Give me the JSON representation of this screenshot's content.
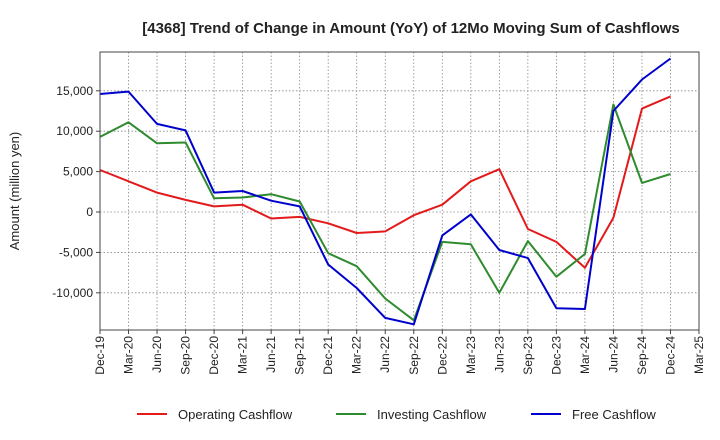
{
  "chart_data": {
    "type": "line",
    "title": "[4368]  Trend of Change in Amount (YoY) of 12Mo Moving Sum of Cashflows",
    "xlabel": "",
    "ylabel": "Amount (million yen)",
    "ylim": [
      -14600,
      19800
    ],
    "y_ticks": [
      -10000,
      -5000,
      0,
      5000,
      10000,
      15000
    ],
    "y_tick_labels": [
      "-10,000",
      "-5,000",
      "0",
      "5,000",
      "10,000",
      "15,000"
    ],
    "categories": [
      "Dec-19",
      "Mar-20",
      "Jun-20",
      "Sep-20",
      "Dec-20",
      "Mar-21",
      "Jun-21",
      "Sep-21",
      "Dec-21",
      "Mar-22",
      "Jun-22",
      "Sep-22",
      "Dec-22",
      "Mar-23",
      "Jun-23",
      "Sep-23",
      "Dec-23",
      "Mar-24",
      "Jun-24",
      "Sep-24",
      "Dec-24",
      "Mar-25"
    ],
    "grid": true,
    "legend_position": "bottom",
    "series": [
      {
        "name": "Operating Cashflow",
        "color": "#e31a1c",
        "values": [
          5200,
          3800,
          2400,
          1500,
          700,
          900,
          -800,
          -600,
          -1400,
          -2600,
          -2400,
          -400,
          900,
          3800,
          5300,
          -2100,
          -3700,
          -6900,
          -700,
          12800,
          14300,
          null
        ]
      },
      {
        "name": "Investing Cashflow",
        "color": "#2e8b2e",
        "values": [
          9300,
          11100,
          8500,
          8600,
          1700,
          1800,
          2200,
          1300,
          -5100,
          -6700,
          -10700,
          -13400,
          -3700,
          -4000,
          -10000,
          -3600,
          -8000,
          -5200,
          13300,
          3600,
          4700,
          null
        ]
      },
      {
        "name": "Free Cashflow",
        "color": "#0000cc",
        "values": [
          14600,
          14900,
          10900,
          10100,
          2400,
          2600,
          1400,
          700,
          -6500,
          -9400,
          -13100,
          -13900,
          -2900,
          -300,
          -4700,
          -5700,
          -11900,
          -12000,
          12500,
          16400,
          19000,
          null
        ]
      }
    ]
  }
}
